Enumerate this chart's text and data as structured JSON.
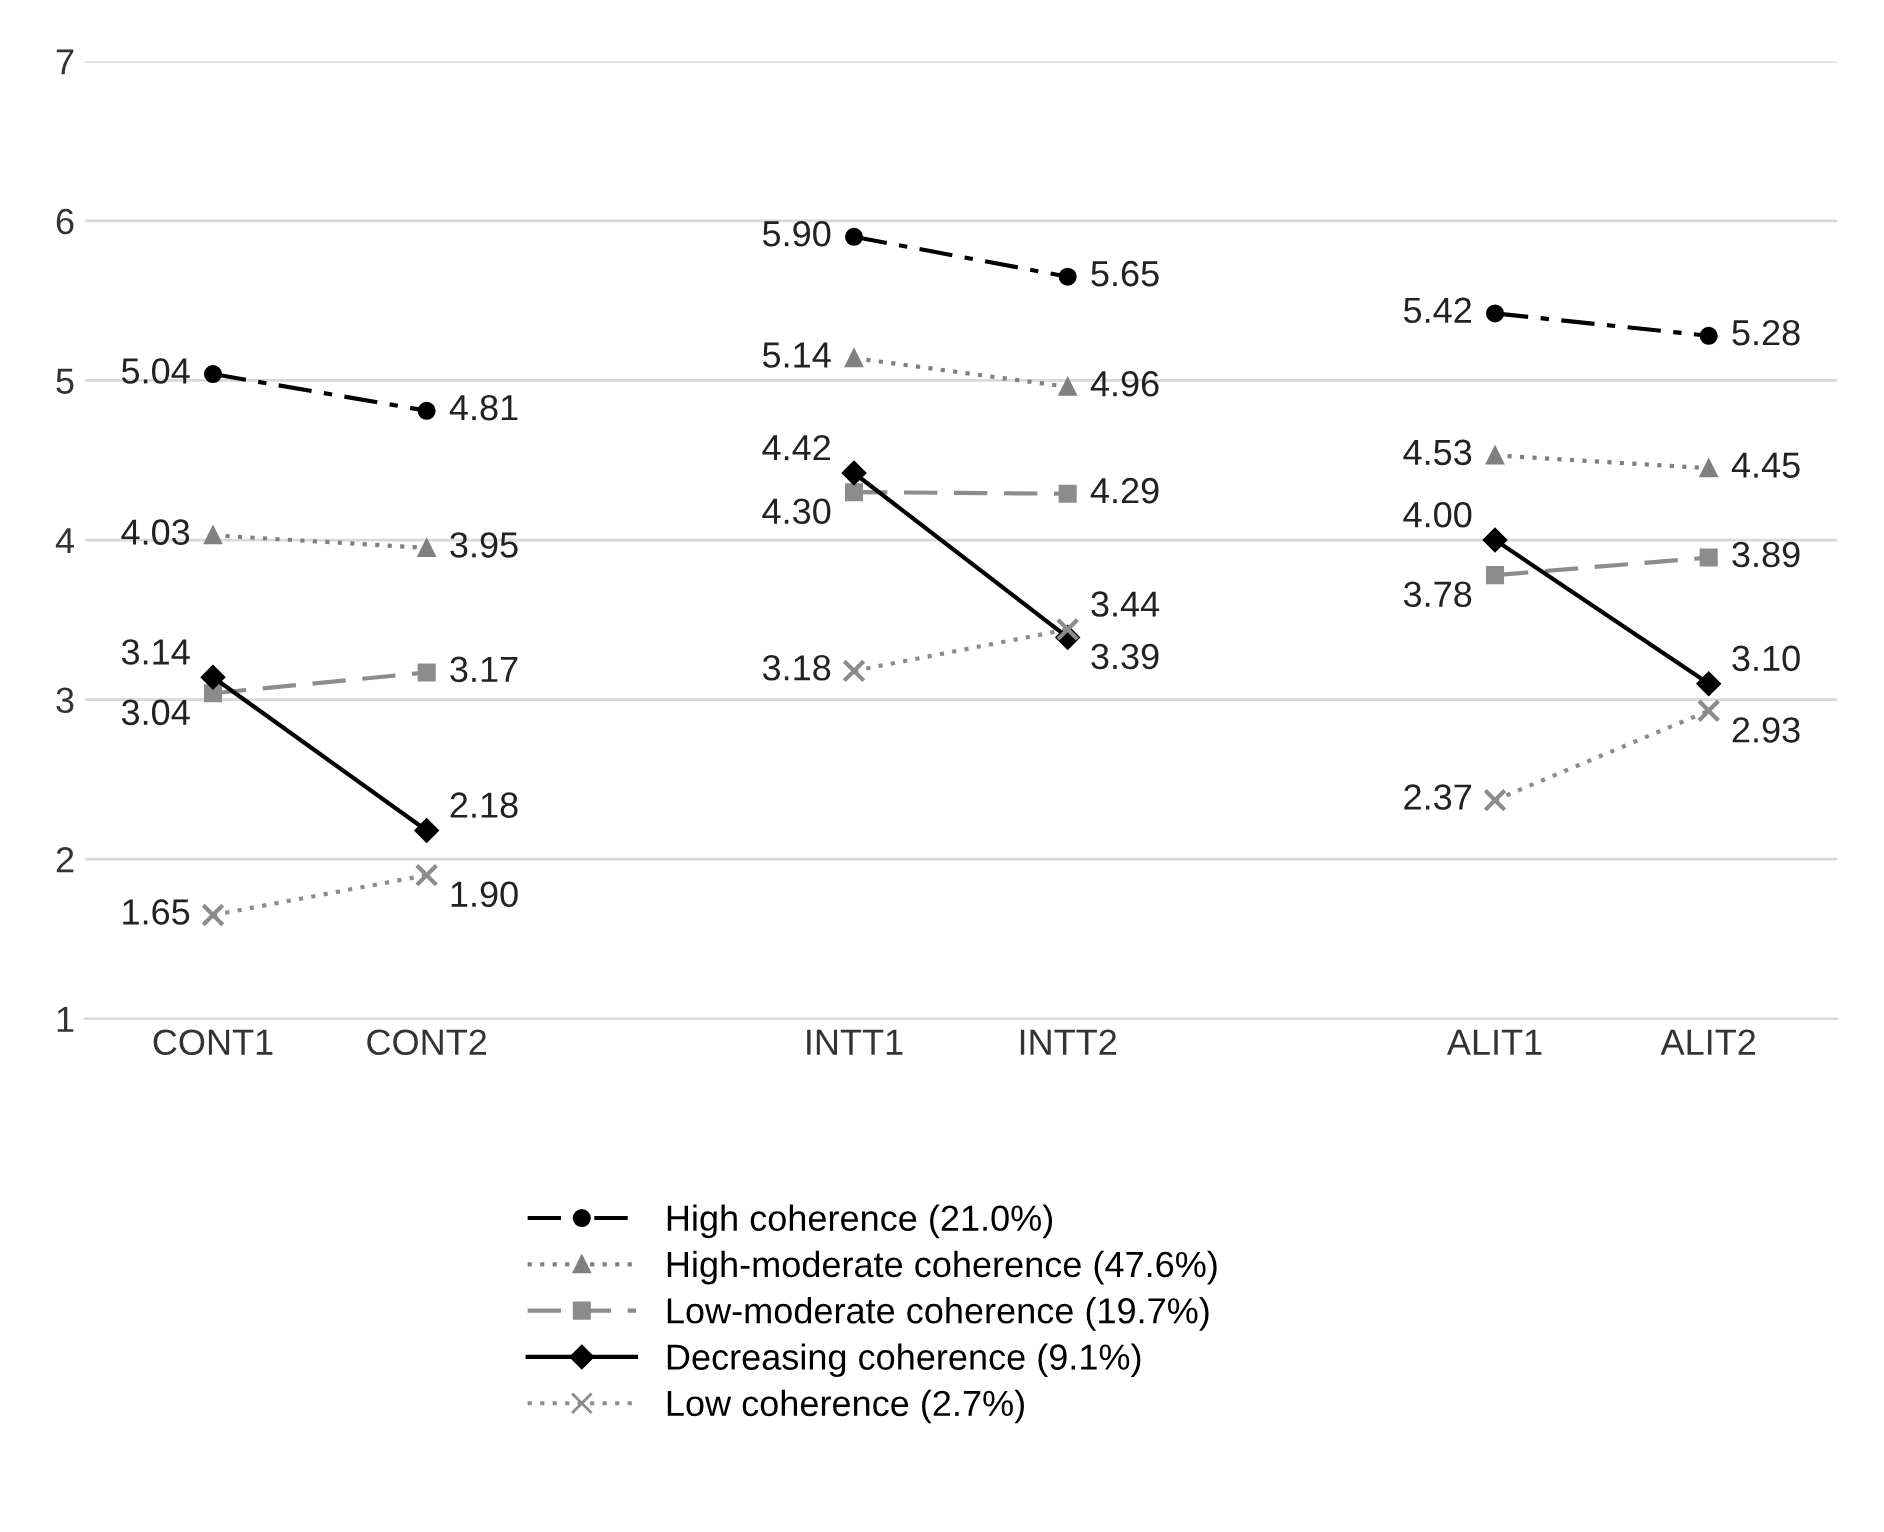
{
  "chart_data": {
    "type": "line",
    "categories": [
      "CONT1",
      "CONT2",
      null,
      "INTT1",
      "INTT2",
      null,
      "ALIT1",
      "ALIT2"
    ],
    "series": [
      {
        "name": "High coherence (21.0%)",
        "color": "#000000",
        "line_style": "dashdot",
        "marker": "circle",
        "values": [
          5.04,
          4.81,
          null,
          5.9,
          5.65,
          null,
          5.42,
          5.28
        ],
        "value_labels": [
          "5.04",
          "4.81",
          null,
          "5.90",
          "5.65",
          null,
          "5.42",
          "5.28"
        ]
      },
      {
        "name": "High-moderate coherence (47.6%)",
        "color": "#808080",
        "line_style": "dotted",
        "marker": "triangle",
        "values": [
          4.03,
          3.95,
          null,
          5.14,
          4.96,
          null,
          4.53,
          4.45
        ],
        "value_labels": [
          "4.03",
          "3.95",
          null,
          "5.14",
          "4.96",
          null,
          "4.53",
          "4.45"
        ]
      },
      {
        "name": "Low-moderate coherence (19.7%)",
        "color": "#8c8c8c",
        "line_style": "dashed",
        "marker": "square",
        "values": [
          3.04,
          3.17,
          null,
          4.3,
          4.29,
          null,
          3.78,
          3.89
        ],
        "value_labels": [
          "3.04",
          "3.17",
          null,
          "4.30",
          "4.29",
          null,
          "3.78",
          "3.89"
        ]
      },
      {
        "name": "Decreasing coherence (9.1%)",
        "color": "#000000",
        "line_style": "solid",
        "marker": "diamond",
        "values": [
          3.14,
          2.18,
          null,
          4.42,
          3.39,
          null,
          4.0,
          3.1
        ],
        "value_labels": [
          "3.14",
          "2.18",
          null,
          "4.42",
          "3.39",
          null,
          "4.00",
          "3.10"
        ]
      },
      {
        "name": "Low coherence (2.7%)",
        "color": "#8c8c8c",
        "line_style": "dotted",
        "marker": "cross",
        "values": [
          1.65,
          1.9,
          null,
          3.18,
          3.44,
          null,
          2.37,
          2.93
        ],
        "value_labels": [
          "1.65",
          "1.90",
          null,
          "3.18",
          "3.44",
          null,
          "2.37",
          "2.93"
        ]
      }
    ],
    "ylim": [
      1,
      7
    ],
    "yticks": [
      1,
      2,
      3,
      4,
      5,
      6,
      7
    ],
    "grid": "y",
    "legend": "bottom"
  }
}
